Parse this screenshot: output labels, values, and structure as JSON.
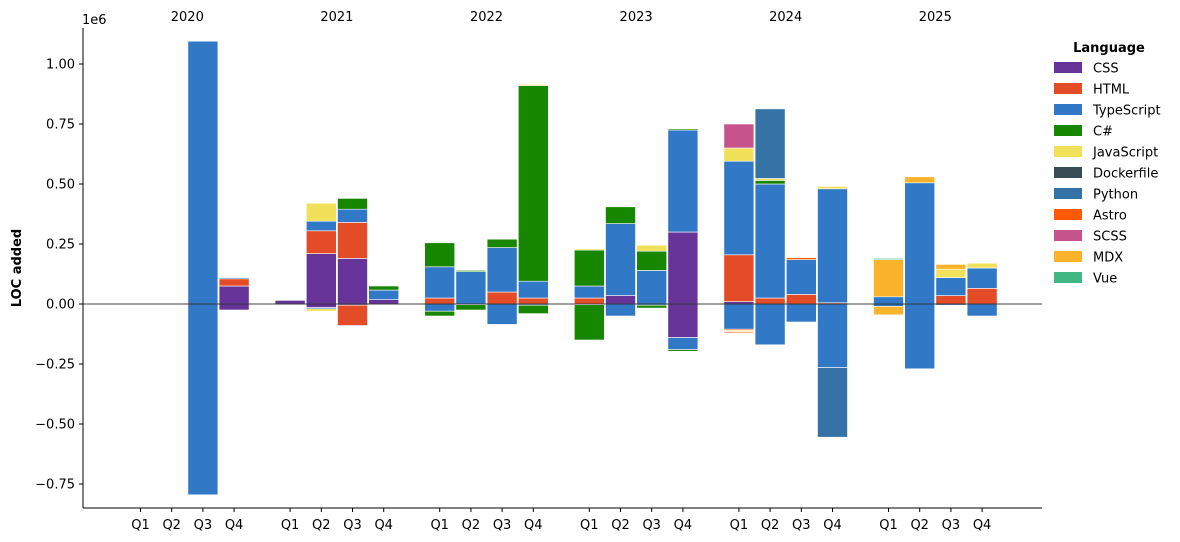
{
  "chart_data": {
    "type": "bar",
    "stacked": true,
    "ylabel": "LOC added",
    "y_scale_label": "1e6",
    "ylim": [
      -0.85,
      1.15
    ],
    "yticks": [
      -0.75,
      -0.5,
      -0.25,
      0.0,
      0.25,
      0.5,
      0.75,
      1.0
    ],
    "ytick_labels": [
      "−0.75",
      "−0.50",
      "−0.25",
      "0.00",
      "0.25",
      "0.50",
      "0.75",
      "1.00"
    ],
    "years": [
      "2020",
      "2021",
      "2022",
      "2023",
      "2024",
      "2025"
    ],
    "quarter_labels": [
      "Q1",
      "Q2",
      "Q3",
      "Q4"
    ],
    "legend_title": "Language",
    "legend_position": "right",
    "languages": [
      {
        "name": "CSS",
        "color": "#663399"
      },
      {
        "name": "HTML",
        "color": "#e34c26"
      },
      {
        "name": "TypeScript",
        "color": "#3178c6"
      },
      {
        "name": "C#",
        "color": "#178600"
      },
      {
        "name": "JavaScript",
        "color": "#f1e05a"
      },
      {
        "name": "Dockerfile",
        "color": "#384d54"
      },
      {
        "name": "Python",
        "color": "#3572a5"
      },
      {
        "name": "Astro",
        "color": "#ff5a03"
      },
      {
        "name": "SCSS",
        "color": "#c6538c"
      },
      {
        "name": "MDX",
        "color": "#fcb32c"
      },
      {
        "name": "Vue",
        "color": "#41b883"
      }
    ],
    "bars": [
      {
        "year": "2020",
        "quarter": "Q3",
        "positive": [
          {
            "lang": "TypeScript",
            "value": 1.095
          }
        ],
        "negative": [
          {
            "lang": "TypeScript",
            "value": -0.795
          }
        ]
      },
      {
        "year": "2020",
        "quarter": "Q4",
        "positive": [
          {
            "lang": "CSS",
            "value": 0.075
          },
          {
            "lang": "HTML",
            "value": 0.03
          },
          {
            "lang": "TypeScript",
            "value": 0.005
          }
        ],
        "negative": [
          {
            "lang": "CSS",
            "value": -0.025
          }
        ]
      },
      {
        "year": "2021",
        "quarter": "Q1",
        "positive": [
          {
            "lang": "CSS",
            "value": 0.015
          }
        ],
        "negative": [
          {
            "lang": "CSS",
            "value": -0.003
          }
        ]
      },
      {
        "year": "2021",
        "quarter": "Q2",
        "positive": [
          {
            "lang": "CSS",
            "value": 0.21
          },
          {
            "lang": "HTML",
            "value": 0.095
          },
          {
            "lang": "TypeScript",
            "value": 0.04
          },
          {
            "lang": "JavaScript",
            "value": 0.075
          }
        ],
        "negative": [
          {
            "lang": "CSS",
            "value": -0.015
          },
          {
            "lang": "TypeScript",
            "value": -0.005
          },
          {
            "lang": "JavaScript",
            "value": -0.01
          }
        ]
      },
      {
        "year": "2021",
        "quarter": "Q3",
        "positive": [
          {
            "lang": "CSS",
            "value": 0.19
          },
          {
            "lang": "HTML",
            "value": 0.15
          },
          {
            "lang": "TypeScript",
            "value": 0.055
          },
          {
            "lang": "C#",
            "value": 0.045
          }
        ],
        "negative": [
          {
            "lang": "CSS",
            "value": -0.005
          },
          {
            "lang": "HTML",
            "value": -0.085
          },
          {
            "lang": "TypeScript",
            "value": -0.003
          }
        ]
      },
      {
        "year": "2021",
        "quarter": "Q4",
        "positive": [
          {
            "lang": "CSS",
            "value": 0.018
          },
          {
            "lang": "TypeScript",
            "value": 0.04
          },
          {
            "lang": "C#",
            "value": 0.017
          }
        ],
        "negative": [
          {
            "lang": "CSS",
            "value": -0.003
          }
        ]
      },
      {
        "year": "2022",
        "quarter": "Q1",
        "positive": [
          {
            "lang": "HTML",
            "value": 0.025
          },
          {
            "lang": "TypeScript",
            "value": 0.13
          },
          {
            "lang": "C#",
            "value": 0.1
          }
        ],
        "negative": [
          {
            "lang": "TypeScript",
            "value": -0.03
          },
          {
            "lang": "C#",
            "value": -0.02
          }
        ]
      },
      {
        "year": "2022",
        "quarter": "Q2",
        "positive": [
          {
            "lang": "TypeScript",
            "value": 0.135
          },
          {
            "lang": "C#",
            "value": 0.005
          }
        ],
        "negative": [
          {
            "lang": "TypeScript",
            "value": -0.003
          },
          {
            "lang": "C#",
            "value": -0.022
          }
        ]
      },
      {
        "year": "2022",
        "quarter": "Q3",
        "positive": [
          {
            "lang": "HTML",
            "value": 0.05
          },
          {
            "lang": "TypeScript",
            "value": 0.185
          },
          {
            "lang": "C#",
            "value": 0.035
          }
        ],
        "negative": [
          {
            "lang": "TypeScript",
            "value": -0.085
          }
        ]
      },
      {
        "year": "2022",
        "quarter": "Q4",
        "positive": [
          {
            "lang": "HTML",
            "value": 0.025
          },
          {
            "lang": "TypeScript",
            "value": 0.07
          },
          {
            "lang": "C#",
            "value": 0.815
          },
          {
            "lang": "JavaScript",
            "value": 0.005
          }
        ],
        "negative": [
          {
            "lang": "TypeScript",
            "value": -0.005
          },
          {
            "lang": "C#",
            "value": -0.035
          }
        ]
      },
      {
        "year": "2023",
        "quarter": "Q1",
        "positive": [
          {
            "lang": "HTML",
            "value": 0.025
          },
          {
            "lang": "TypeScript",
            "value": 0.05
          },
          {
            "lang": "C#",
            "value": 0.15
          },
          {
            "lang": "JavaScript",
            "value": 0.005
          }
        ],
        "negative": [
          {
            "lang": "TypeScript",
            "value": -0.003
          },
          {
            "lang": "C#",
            "value": -0.147
          }
        ]
      },
      {
        "year": "2023",
        "quarter": "Q2",
        "positive": [
          {
            "lang": "CSS",
            "value": 0.035
          },
          {
            "lang": "TypeScript",
            "value": 0.3
          },
          {
            "lang": "C#",
            "value": 0.07
          }
        ],
        "negative": [
          {
            "lang": "TypeScript",
            "value": -0.05
          }
        ]
      },
      {
        "year": "2023",
        "quarter": "Q3",
        "positive": [
          {
            "lang": "TypeScript",
            "value": 0.14
          },
          {
            "lang": "C#",
            "value": 0.08
          },
          {
            "lang": "JavaScript",
            "value": 0.025
          }
        ],
        "negative": [
          {
            "lang": "TypeScript",
            "value": -0.005
          },
          {
            "lang": "C#",
            "value": -0.012
          }
        ]
      },
      {
        "year": "2023",
        "quarter": "Q4",
        "positive": [
          {
            "lang": "CSS",
            "value": 0.3
          },
          {
            "lang": "TypeScript",
            "value": 0.425
          },
          {
            "lang": "C#",
            "value": 0.005
          }
        ],
        "negative": [
          {
            "lang": "CSS",
            "value": -0.14
          },
          {
            "lang": "TypeScript",
            "value": -0.05
          },
          {
            "lang": "C#",
            "value": -0.007
          }
        ]
      },
      {
        "year": "2024",
        "quarter": "Q1",
        "positive": [
          {
            "lang": "CSS",
            "value": 0.01
          },
          {
            "lang": "HTML",
            "value": 0.195
          },
          {
            "lang": "TypeScript",
            "value": 0.39
          },
          {
            "lang": "JavaScript",
            "value": 0.055
          },
          {
            "lang": "SCSS",
            "value": 0.1
          }
        ],
        "negative": [
          {
            "lang": "TypeScript",
            "value": -0.105
          },
          {
            "lang": "HTML",
            "value": -0.005
          },
          {
            "lang": "JavaScript",
            "value": -0.005
          },
          {
            "lang": "Astro",
            "value": -0.005
          }
        ]
      },
      {
        "year": "2024",
        "quarter": "Q2",
        "positive": [
          {
            "lang": "HTML",
            "value": 0.025
          },
          {
            "lang": "TypeScript",
            "value": 0.475
          },
          {
            "lang": "C#",
            "value": 0.015
          },
          {
            "lang": "JavaScript",
            "value": 0.008
          },
          {
            "lang": "Python",
            "value": 0.29
          }
        ],
        "negative": [
          {
            "lang": "TypeScript",
            "value": -0.17
          }
        ]
      },
      {
        "year": "2024",
        "quarter": "Q3",
        "positive": [
          {
            "lang": "HTML",
            "value": 0.04
          },
          {
            "lang": "TypeScript",
            "value": 0.145
          },
          {
            "lang": "Astro",
            "value": 0.008
          }
        ],
        "negative": [
          {
            "lang": "TypeScript",
            "value": -0.075
          }
        ]
      },
      {
        "year": "2024",
        "quarter": "Q4",
        "positive": [
          {
            "lang": "HTML",
            "value": 0.005
          },
          {
            "lang": "TypeScript",
            "value": 0.475
          },
          {
            "lang": "JavaScript",
            "value": 0.01
          }
        ],
        "negative": [
          {
            "lang": "TypeScript",
            "value": -0.265
          },
          {
            "lang": "Python",
            "value": -0.29
          }
        ]
      },
      {
        "year": "2025",
        "quarter": "Q1",
        "positive": [
          {
            "lang": "TypeScript",
            "value": 0.03
          },
          {
            "lang": "MDX",
            "value": 0.155
          },
          {
            "lang": "Vue",
            "value": 0.005
          }
        ],
        "negative": [
          {
            "lang": "TypeScript",
            "value": -0.01
          },
          {
            "lang": "MDX",
            "value": -0.035
          }
        ]
      },
      {
        "year": "2025",
        "quarter": "Q2",
        "positive": [
          {
            "lang": "TypeScript",
            "value": 0.505
          },
          {
            "lang": "MDX",
            "value": 0.025
          }
        ],
        "negative": [
          {
            "lang": "TypeScript",
            "value": -0.27
          }
        ]
      },
      {
        "year": "2025",
        "quarter": "Q3",
        "positive": [
          {
            "lang": "HTML",
            "value": 0.035
          },
          {
            "lang": "TypeScript",
            "value": 0.075
          },
          {
            "lang": "JavaScript",
            "value": 0.035
          },
          {
            "lang": "MDX",
            "value": 0.02
          }
        ],
        "negative": [
          {
            "lang": "TypeScript",
            "value": -0.005
          }
        ]
      },
      {
        "year": "2025",
        "quarter": "Q4",
        "positive": [
          {
            "lang": "HTML",
            "value": 0.065
          },
          {
            "lang": "TypeScript",
            "value": 0.085
          },
          {
            "lang": "JavaScript",
            "value": 0.02
          }
        ],
        "negative": [
          {
            "lang": "TypeScript",
            "value": -0.05
          }
        ]
      }
    ]
  }
}
